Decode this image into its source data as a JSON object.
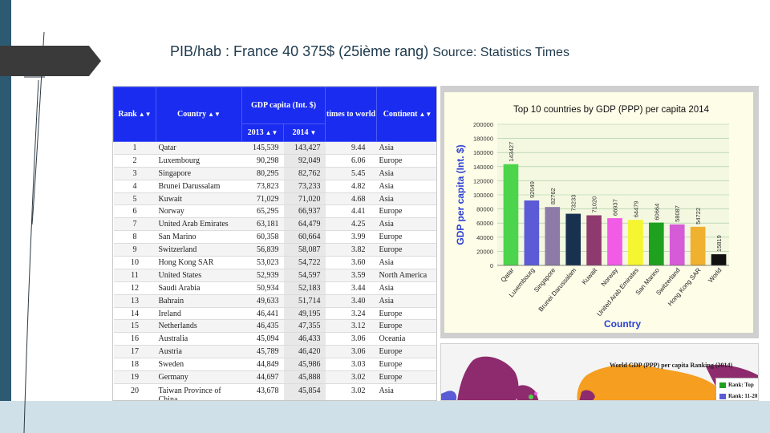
{
  "slide": {
    "title": "PIB/hab : France 40 375$ (25ième rang)",
    "source": "Source: Statistics Times"
  },
  "table": {
    "headers": {
      "rank": "Rank",
      "country": "Country",
      "gdp_group": "GDP capita (Int. $)",
      "y2013": "2013",
      "y2014": "2014",
      "times": "times to world",
      "continent": "Continent"
    },
    "rows": [
      {
        "rank": "1",
        "country": "Qatar",
        "y2013": "145,539",
        "y2014": "143,427",
        "times": "9.44",
        "continent": "Asia"
      },
      {
        "rank": "2",
        "country": "Luxembourg",
        "y2013": "90,298",
        "y2014": "92,049",
        "times": "6.06",
        "continent": "Europe"
      },
      {
        "rank": "3",
        "country": "Singapore",
        "y2013": "80,295",
        "y2014": "82,762",
        "times": "5.45",
        "continent": "Asia"
      },
      {
        "rank": "4",
        "country": "Brunei Darussalam",
        "y2013": "73,823",
        "y2014": "73,233",
        "times": "4.82",
        "continent": "Asia"
      },
      {
        "rank": "5",
        "country": "Kuwait",
        "y2013": "71,029",
        "y2014": "71,020",
        "times": "4.68",
        "continent": "Asia"
      },
      {
        "rank": "6",
        "country": "Norway",
        "y2013": "65,295",
        "y2014": "66,937",
        "times": "4.41",
        "continent": "Europe"
      },
      {
        "rank": "7",
        "country": "United Arab Emirates",
        "y2013": "63,181",
        "y2014": "64,479",
        "times": "4.25",
        "continent": "Asia"
      },
      {
        "rank": "8",
        "country": "San Marino",
        "y2013": "60,358",
        "y2014": "60,664",
        "times": "3.99",
        "continent": "Europe"
      },
      {
        "rank": "9",
        "country": "Switzerland",
        "y2013": "56,839",
        "y2014": "58,087",
        "times": "3.82",
        "continent": "Europe"
      },
      {
        "rank": "10",
        "country": "Hong Kong SAR",
        "y2013": "53,023",
        "y2014": "54,722",
        "times": "3.60",
        "continent": "Asia"
      },
      {
        "rank": "11",
        "country": "United States",
        "y2013": "52,939",
        "y2014": "54,597",
        "times": "3.59",
        "continent": "North America"
      },
      {
        "rank": "12",
        "country": "Saudi Arabia",
        "y2013": "50,934",
        "y2014": "52,183",
        "times": "3.44",
        "continent": "Asia"
      },
      {
        "rank": "13",
        "country": "Bahrain",
        "y2013": "49,633",
        "y2014": "51,714",
        "times": "3.40",
        "continent": "Asia"
      },
      {
        "rank": "14",
        "country": "Ireland",
        "y2013": "46,441",
        "y2014": "49,195",
        "times": "3.24",
        "continent": "Europe"
      },
      {
        "rank": "15",
        "country": "Netherlands",
        "y2013": "46,435",
        "y2014": "47,355",
        "times": "3.12",
        "continent": "Europe"
      },
      {
        "rank": "16",
        "country": "Australia",
        "y2013": "45,094",
        "y2014": "46,433",
        "times": "3.06",
        "continent": "Oceania"
      },
      {
        "rank": "17",
        "country": "Austria",
        "y2013": "45,789",
        "y2014": "46,420",
        "times": "3.06",
        "continent": "Europe"
      },
      {
        "rank": "18",
        "country": "Sweden",
        "y2013": "44,849",
        "y2014": "45,986",
        "times": "3.03",
        "continent": "Europe"
      },
      {
        "rank": "19",
        "country": "Germany",
        "y2013": "44,697",
        "y2014": "45,888",
        "times": "3.02",
        "continent": "Europe"
      },
      {
        "rank": "20",
        "country": "Taiwan Province of China",
        "y2013": "43,678",
        "y2014": "45,854",
        "times": "3.02",
        "continent": "Asia"
      }
    ]
  },
  "chart_data": {
    "type": "bar",
    "title": "Top 10 countries by GDP (PPP) per capita 2014",
    "xlabel": "Country",
    "ylabel": "GDP per capita (Int. $)",
    "ylim": [
      0,
      200000
    ],
    "yticks": [
      "0",
      "20000",
      "40000",
      "60000",
      "80000",
      "100000",
      "120000",
      "140000",
      "160000",
      "180000",
      "200000"
    ],
    "grid": true,
    "categories": [
      "Qatar",
      "Luxembourg",
      "Singapore",
      "Brunei Darussalam",
      "Kuwait",
      "Norway",
      "United Arab Emirates",
      "San Marino",
      "Switzerland",
      "Hong Kong SAR",
      "World"
    ],
    "values": [
      143427,
      92049,
      82762,
      73233,
      71020,
      66937,
      64479,
      60664,
      58087,
      54722,
      15819
    ],
    "labels": [
      "143427",
      "92049",
      "82762",
      "73233",
      "71020",
      "66937",
      "64479",
      "60664",
      "58087",
      "54722",
      "15819"
    ],
    "colors": [
      "#4cd44c",
      "#5b5bd6",
      "#8e7aa8",
      "#17314f",
      "#8e3a6e",
      "#f15be6",
      "#f5f530",
      "#1fa01f",
      "#d65bd6",
      "#f0b030",
      "#111111"
    ]
  },
  "map": {
    "title": "World GDP (PPP) per capita Ranking (2014)",
    "legend": [
      {
        "label": "Rank: Top",
        "color": "#1fa01f"
      },
      {
        "label": "Rank: 11-20",
        "color": "#5b5bd6"
      }
    ]
  },
  "theme": {
    "header_blue": "#1a2cf0",
    "slide_accent": "#2d5a73"
  }
}
